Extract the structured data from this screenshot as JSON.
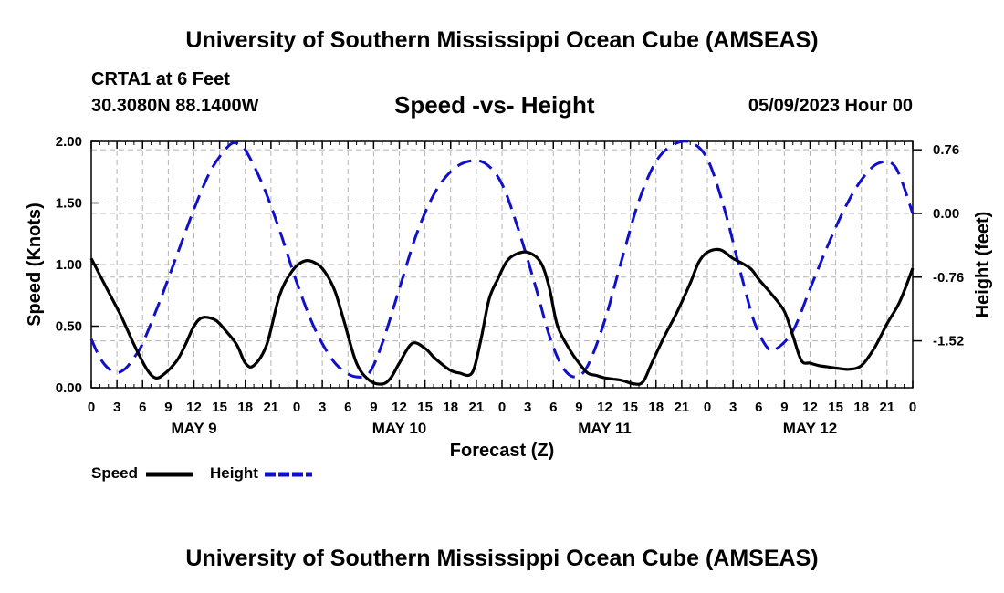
{
  "page": {
    "title_top": "University of Southern Mississippi Ocean Cube (AMSEAS)",
    "title_bottom": "University of Southern Mississippi Ocean Cube (AMSEAS)",
    "station": "CRTA1 at 6 Feet",
    "coords": "30.3080N  88.1400W",
    "subtitle": "Speed -vs- Height",
    "datestamp": "05/09/2023 Hour 00"
  },
  "colors": {
    "speed": "#000000",
    "height": "#1010c8",
    "grid": "#b4b4b4"
  },
  "legend": [
    {
      "label": "Speed",
      "series": "speed"
    },
    {
      "label": "Height",
      "series": "height"
    }
  ],
  "chart_data": {
    "type": "line",
    "xlabel": "Forecast (Z)",
    "ylabel": "Speed (Knots)",
    "y2label": "Height (feet)",
    "xlim": [
      0,
      96
    ],
    "ylim": [
      0,
      2.0
    ],
    "y2lim": [
      -2.08,
      0.86
    ],
    "x_ticks": [
      0,
      3,
      6,
      9,
      12,
      15,
      18,
      21,
      24,
      27,
      30,
      33,
      36,
      39,
      42,
      45,
      48,
      51,
      54,
      57,
      60,
      63,
      66,
      69,
      72,
      75,
      78,
      81,
      84,
      87,
      90,
      93,
      96
    ],
    "x_tick_labels": [
      "0",
      "3",
      "6",
      "9",
      "12",
      "15",
      "18",
      "21",
      "0",
      "3",
      "6",
      "9",
      "12",
      "15",
      "18",
      "21",
      "0",
      "3",
      "6",
      "9",
      "12",
      "15",
      "18",
      "21",
      "0",
      "3",
      "6",
      "9",
      "12",
      "15",
      "18",
      "21",
      "0"
    ],
    "day_labels": [
      {
        "x": 12,
        "label": "MAY 9"
      },
      {
        "x": 36,
        "label": "MAY 10"
      },
      {
        "x": 60,
        "label": "MAY 11"
      },
      {
        "x": 84,
        "label": "MAY 12"
      }
    ],
    "y_ticks": [
      0.0,
      0.5,
      1.0,
      1.5,
      2.0
    ],
    "y_tick_labels": [
      "0.00",
      "0.50",
      "1.00",
      "1.50",
      "2.00"
    ],
    "y2_ticks": [
      0.76,
      0.0,
      -0.76,
      -1.52
    ],
    "y2_tick_labels": [
      "0.76",
      "0.00",
      "-0.76",
      "-1.52"
    ],
    "series": [
      {
        "name": "Speed",
        "axis": "left",
        "x": [
          0,
          2,
          3.5,
          5,
          6.5,
          7.5,
          8.5,
          10,
          11,
          12,
          13,
          14.5,
          15.5,
          17,
          18,
          19,
          20.5,
          22,
          23.5,
          25,
          26.5,
          27.5,
          28.5,
          29.5,
          31,
          32.5,
          34,
          35,
          36,
          37.5,
          39,
          40,
          41,
          42,
          43,
          44.5,
          45.5,
          46.5,
          47.5,
          48.5,
          49.5,
          51,
          52.5,
          53.5,
          54.5,
          56,
          57,
          58,
          59,
          60,
          61,
          62,
          63.5,
          64.5,
          65.5,
          67,
          68.5,
          70,
          71,
          72,
          73.5,
          75,
          77,
          78,
          79.5,
          81,
          82,
          83,
          84,
          85,
          86,
          87,
          88.5,
          90,
          91.5,
          93,
          94.5,
          96
        ],
        "values": [
          1.05,
          0.78,
          0.58,
          0.35,
          0.15,
          0.08,
          0.11,
          0.22,
          0.35,
          0.5,
          0.57,
          0.55,
          0.48,
          0.35,
          0.2,
          0.18,
          0.35,
          0.75,
          0.95,
          1.03,
          1.0,
          0.92,
          0.78,
          0.55,
          0.2,
          0.06,
          0.03,
          0.08,
          0.2,
          0.36,
          0.32,
          0.25,
          0.19,
          0.14,
          0.12,
          0.12,
          0.38,
          0.72,
          0.88,
          1.02,
          1.08,
          1.1,
          1.02,
          0.82,
          0.5,
          0.3,
          0.2,
          0.12,
          0.1,
          0.08,
          0.07,
          0.06,
          0.03,
          0.05,
          0.2,
          0.42,
          0.62,
          0.85,
          1.02,
          1.1,
          1.12,
          1.05,
          0.97,
          0.88,
          0.76,
          0.62,
          0.42,
          0.22,
          0.2,
          0.18,
          0.17,
          0.16,
          0.15,
          0.18,
          0.32,
          0.52,
          0.7,
          0.97
        ]
      },
      {
        "name": "Height",
        "axis": "right",
        "x": [
          0,
          1,
          2,
          3,
          4,
          5,
          6,
          8,
          10,
          12,
          14,
          16,
          17,
          18,
          20,
          22,
          24,
          26,
          28,
          29.5,
          31,
          32.5,
          34,
          36,
          38,
          40,
          42,
          44,
          46,
          48,
          50,
          52,
          53.5,
          55,
          56.5,
          58,
          60,
          62,
          64,
          66,
          68,
          70,
          72,
          74,
          76,
          77.5,
          79,
          80,
          82,
          84,
          86,
          88,
          90,
          92,
          94,
          96
        ],
        "values": [
          -1.5,
          -1.72,
          -1.85,
          -1.9,
          -1.85,
          -1.72,
          -1.55,
          -1.05,
          -0.5,
          0.05,
          0.52,
          0.8,
          0.84,
          0.76,
          0.35,
          -0.2,
          -0.82,
          -1.35,
          -1.72,
          -1.88,
          -1.95,
          -1.9,
          -1.55,
          -0.9,
          -0.25,
          0.22,
          0.5,
          0.62,
          0.6,
          0.35,
          -0.22,
          -0.9,
          -1.45,
          -1.82,
          -1.95,
          -1.82,
          -1.28,
          -0.55,
          0.15,
          0.62,
          0.82,
          0.85,
          0.65,
          0.05,
          -0.75,
          -1.3,
          -1.6,
          -1.62,
          -1.4,
          -0.9,
          -0.4,
          0.05,
          0.4,
          0.6,
          0.55,
          0.0
        ]
      }
    ]
  }
}
